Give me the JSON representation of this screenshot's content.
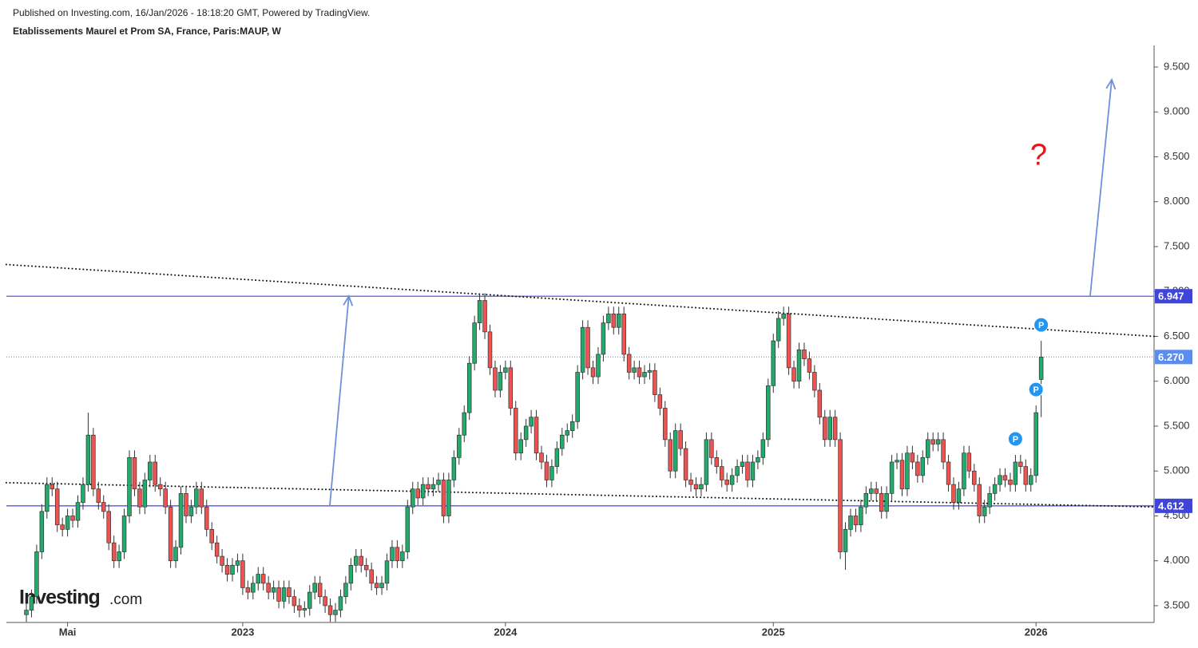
{
  "header": {
    "published": "Published on Investing.com, 16/Jan/2026 - 18:18:20 GMT, Powered by TradingView."
  },
  "logo": {
    "name": "Investing",
    "suffix": ".com"
  },
  "chart_data": {
    "type": "candlestick",
    "title": "Etablissements Maurel et Prom SA, France, Paris:MAUP, W",
    "up_color": "#22ab6b",
    "down_color": "#ef5350",
    "ylim": [
      3.313,
      9.74
    ],
    "yticks": [
      {
        "value": 3.5,
        "label": "3.500"
      },
      {
        "value": 4.0,
        "label": "4.000"
      },
      {
        "value": 4.5,
        "label": "4.500"
      },
      {
        "value": 5.0,
        "label": "5.000"
      },
      {
        "value": 5.5,
        "label": "5.500"
      },
      {
        "value": 6.0,
        "label": "6.000"
      },
      {
        "value": 6.5,
        "label": "6.500"
      },
      {
        "value": 7.0,
        "label": "7.000"
      },
      {
        "value": 7.5,
        "label": "7.500"
      },
      {
        "value": 8.0,
        "label": "8.000"
      },
      {
        "value": 8.5,
        "label": "8.500"
      },
      {
        "value": 9.0,
        "label": "9.000"
      },
      {
        "value": 9.5,
        "label": "9.500"
      }
    ],
    "categories": [
      null,
      null,
      null,
      null,
      null,
      null,
      null,
      null,
      "Mai",
      null,
      null,
      null,
      null,
      null,
      null,
      null,
      null,
      null,
      null,
      null,
      null,
      null,
      null,
      null,
      null,
      null,
      null,
      null,
      null,
      null,
      null,
      null,
      null,
      null,
      null,
      null,
      null,
      null,
      null,
      null,
      null,
      null,
      "2023",
      null,
      null,
      null,
      null,
      null,
      null,
      null,
      null,
      null,
      null,
      null,
      null,
      null,
      null,
      null,
      null,
      null,
      null,
      null,
      null,
      null,
      null,
      null,
      null,
      null,
      null,
      null,
      null,
      null,
      null,
      null,
      null,
      null,
      null,
      null,
      null,
      null,
      null,
      null,
      null,
      null,
      null,
      null,
      null,
      null,
      null,
      null,
      null,
      null,
      null,
      "2024",
      null,
      null,
      null,
      null,
      null,
      null,
      null,
      null,
      null,
      null,
      null,
      null,
      null,
      null,
      null,
      null,
      null,
      null,
      null,
      null,
      null,
      null,
      null,
      null,
      null,
      null,
      null,
      null,
      null,
      null,
      null,
      null,
      null,
      null,
      null,
      null,
      null,
      null,
      null,
      null,
      null,
      null,
      null,
      null,
      null,
      null,
      null,
      null,
      null,
      null,
      null,
      "2025",
      null,
      null,
      null,
      null,
      null,
      null,
      null,
      null,
      null,
      null,
      null,
      null,
      null,
      null,
      null,
      null,
      null,
      null,
      null,
      null,
      null,
      null,
      null,
      null,
      null,
      null,
      null,
      null,
      null,
      null,
      null,
      null,
      null,
      null,
      null,
      null,
      null,
      null,
      null,
      null,
      null,
      null,
      null,
      null,
      null,
      null,
      null,
      null,
      null,
      null,
      "2026",
      null
    ],
    "open": [
      3.4,
      3.45,
      3.6,
      4.1,
      4.55,
      4.85,
      4.8,
      4.4,
      4.35,
      4.5,
      4.45,
      4.65,
      4.85,
      5.4,
      4.8,
      4.65,
      4.55,
      4.2,
      4.0,
      4.1,
      4.5,
      5.15,
      4.8,
      4.6,
      4.9,
      5.1,
      4.85,
      4.8,
      4.6,
      4.0,
      4.15,
      4.75,
      4.5,
      4.6,
      4.8,
      4.6,
      4.35,
      4.2,
      4.05,
      3.95,
      3.85,
      3.95,
      4.0,
      3.7,
      3.65,
      3.75,
      3.85,
      3.75,
      3.65,
      3.7,
      3.55,
      3.7,
      3.6,
      3.5,
      3.45,
      3.47,
      3.65,
      3.75,
      3.6,
      3.5,
      3.4,
      3.45,
      3.6,
      3.75,
      3.95,
      4.05,
      3.95,
      3.9,
      3.75,
      3.7,
      3.75,
      4.0,
      4.15,
      4.0,
      4.1,
      4.6,
      4.8,
      4.7,
      4.85,
      4.8,
      4.85,
      4.9,
      4.5,
      4.9,
      5.15,
      5.4,
      5.65,
      6.2,
      6.65,
      6.9,
      6.55,
      6.15,
      5.9,
      6.1,
      6.15,
      5.7,
      5.2,
      5.35,
      5.5,
      5.6,
      5.2,
      5.1,
      4.9,
      5.05,
      5.25,
      5.4,
      5.45,
      5.55,
      6.1,
      6.6,
      6.15,
      6.05,
      6.3,
      6.65,
      6.75,
      6.6,
      6.75,
      6.3,
      6.1,
      6.15,
      6.05,
      6.1,
      6.12,
      5.85,
      5.7,
      5.35,
      5.0,
      5.45,
      5.25,
      4.9,
      4.85,
      4.8,
      4.85,
      5.35,
      5.15,
      5.05,
      4.9,
      4.85,
      4.95,
      5.05,
      5.1,
      4.9,
      5.1,
      5.15,
      5.35,
      5.95,
      6.45,
      6.7,
      6.75,
      6.15,
      6.0,
      6.35,
      6.25,
      6.1,
      5.9,
      5.6,
      5.35,
      5.6,
      5.35,
      4.1,
      4.35,
      4.5,
      4.4,
      4.6,
      4.75,
      4.8,
      4.75,
      4.55,
      4.75,
      5.1,
      5.12,
      4.8,
      5.2,
      5.1,
      4.95,
      5.15,
      5.35,
      5.3,
      5.35,
      5.1,
      4.85,
      4.65,
      4.8,
      5.2,
      5.0,
      4.85,
      4.5,
      4.6,
      4.75,
      4.85,
      4.95,
      4.9,
      4.85,
      5.1,
      5.05,
      4.85,
      4.95,
      6.02
    ],
    "high": [
      3.53,
      3.68,
      4.18,
      4.63,
      4.93,
      4.93,
      4.88,
      4.48,
      4.58,
      4.58,
      4.73,
      4.93,
      5.65,
      5.48,
      4.88,
      4.73,
      4.63,
      4.28,
      4.18,
      4.58,
      5.23,
      5.23,
      4.88,
      4.98,
      5.18,
      5.18,
      4.93,
      4.88,
      4.68,
      4.23,
      4.83,
      4.83,
      4.68,
      4.88,
      4.88,
      4.68,
      4.43,
      4.28,
      4.13,
      4.03,
      4.03,
      4.08,
      4.08,
      3.78,
      3.83,
      3.93,
      3.93,
      3.83,
      3.78,
      3.78,
      3.78,
      3.78,
      3.68,
      3.58,
      3.55,
      3.73,
      3.83,
      3.83,
      3.68,
      3.58,
      3.53,
      3.68,
      3.83,
      4.03,
      4.13,
      4.13,
      4.03,
      3.98,
      3.83,
      3.83,
      4.08,
      4.23,
      4.23,
      4.18,
      4.68,
      4.88,
      4.88,
      4.93,
      4.93,
      4.93,
      4.98,
      4.98,
      4.98,
      5.23,
      5.48,
      5.73,
      6.28,
      6.73,
      6.98,
      6.98,
      6.63,
      6.23,
      6.18,
      6.23,
      6.23,
      5.78,
      5.43,
      5.58,
      5.68,
      5.68,
      5.28,
      5.18,
      5.13,
      5.33,
      5.48,
      5.53,
      5.63,
      6.18,
      6.68,
      6.68,
      6.23,
      6.38,
      6.73,
      6.83,
      6.83,
      6.83,
      6.83,
      6.38,
      6.23,
      6.23,
      6.18,
      6.2,
      6.2,
      5.93,
      5.78,
      5.43,
      5.53,
      5.53,
      5.33,
      4.98,
      4.93,
      4.93,
      5.43,
      5.43,
      5.23,
      5.13,
      4.98,
      5.03,
      5.13,
      5.18,
      5.18,
      5.18,
      5.23,
      5.43,
      6.03,
      6.53,
      6.78,
      6.83,
      6.83,
      6.23,
      6.43,
      6.43,
      6.33,
      6.18,
      5.98,
      5.68,
      5.68,
      5.68,
      5.43,
      4.43,
      4.58,
      4.58,
      4.68,
      4.83,
      4.88,
      4.88,
      4.83,
      4.83,
      5.18,
      5.2,
      5.2,
      5.28,
      5.28,
      5.18,
      5.23,
      5.43,
      5.43,
      5.43,
      5.43,
      5.18,
      4.93,
      4.88,
      5.28,
      5.28,
      5.08,
      4.93,
      4.68,
      4.83,
      4.93,
      5.03,
      5.03,
      4.98,
      5.18,
      5.18,
      5.13,
      5.03,
      5.73,
      6.45
    ],
    "low": [
      3.32,
      3.37,
      3.52,
      4.02,
      4.47,
      4.72,
      4.32,
      4.27,
      4.27,
      4.37,
      4.37,
      4.57,
      4.77,
      4.72,
      4.57,
      4.47,
      4.12,
      3.92,
      3.92,
      4.02,
      4.42,
      4.72,
      4.52,
      4.52,
      4.82,
      4.77,
      4.72,
      4.52,
      3.92,
      3.92,
      4.07,
      4.42,
      4.42,
      4.52,
      4.52,
      4.27,
      4.12,
      3.97,
      3.87,
      3.77,
      3.77,
      3.87,
      3.62,
      3.57,
      3.57,
      3.67,
      3.67,
      3.57,
      3.57,
      3.47,
      3.47,
      3.52,
      3.42,
      3.37,
      3.37,
      3.39,
      3.57,
      3.52,
      3.42,
      3.32,
      3.32,
      3.37,
      3.52,
      3.67,
      3.87,
      3.87,
      3.82,
      3.67,
      3.62,
      3.62,
      3.67,
      3.92,
      3.92,
      3.92,
      4.02,
      4.52,
      4.62,
      4.62,
      4.72,
      4.72,
      4.77,
      4.42,
      4.42,
      4.82,
      5.07,
      5.32,
      5.57,
      6.12,
      6.57,
      6.47,
      6.07,
      5.82,
      5.82,
      6.02,
      5.62,
      5.12,
      5.12,
      5.27,
      5.42,
      5.12,
      5.02,
      4.82,
      4.82,
      4.97,
      5.17,
      5.32,
      5.37,
      5.47,
      6.02,
      6.07,
      5.97,
      5.97,
      6.22,
      6.57,
      6.52,
      6.52,
      6.22,
      6.02,
      6.02,
      5.97,
      5.97,
      6.02,
      5.77,
      5.62,
      5.27,
      4.92,
      4.92,
      5.17,
      4.82,
      4.77,
      4.72,
      4.72,
      4.77,
      5.07,
      4.97,
      4.82,
      4.77,
      4.77,
      4.87,
      4.97,
      4.82,
      4.82,
      5.02,
      5.07,
      5.27,
      5.87,
      6.37,
      6.62,
      6.07,
      5.92,
      5.92,
      6.17,
      6.02,
      5.82,
      5.52,
      5.27,
      5.27,
      5.27,
      4.02,
      3.9,
      4.27,
      4.32,
      4.32,
      4.52,
      4.67,
      4.67,
      4.47,
      4.47,
      4.67,
      5.02,
      4.72,
      4.72,
      5.02,
      4.87,
      4.87,
      5.07,
      5.22,
      5.22,
      5.02,
      4.77,
      4.57,
      4.57,
      4.72,
      4.92,
      4.77,
      4.42,
      4.42,
      4.52,
      4.67,
      4.77,
      4.82,
      4.77,
      4.77,
      4.97,
      4.77,
      4.77,
      4.87,
      5.6
    ],
    "close": [
      3.45,
      3.6,
      4.1,
      4.55,
      4.85,
      4.8,
      4.4,
      4.35,
      4.5,
      4.45,
      4.65,
      4.85,
      5.4,
      4.8,
      4.65,
      4.55,
      4.2,
      4.0,
      4.1,
      4.5,
      5.15,
      4.8,
      4.6,
      4.9,
      5.1,
      4.85,
      4.8,
      4.6,
      4.0,
      4.15,
      4.75,
      4.5,
      4.6,
      4.8,
      4.6,
      4.35,
      4.2,
      4.05,
      3.95,
      3.85,
      3.95,
      4.0,
      3.7,
      3.65,
      3.75,
      3.85,
      3.75,
      3.65,
      3.7,
      3.55,
      3.7,
      3.6,
      3.5,
      3.45,
      3.47,
      3.65,
      3.75,
      3.6,
      3.5,
      3.4,
      3.45,
      3.6,
      3.75,
      3.95,
      4.05,
      3.95,
      3.9,
      3.75,
      3.7,
      3.75,
      4.0,
      4.15,
      4.0,
      4.1,
      4.6,
      4.8,
      4.7,
      4.85,
      4.8,
      4.85,
      4.9,
      4.5,
      4.9,
      5.15,
      5.4,
      5.65,
      6.2,
      6.65,
      6.9,
      6.55,
      6.15,
      5.9,
      6.1,
      6.15,
      5.7,
      5.2,
      5.35,
      5.5,
      5.6,
      5.2,
      5.1,
      4.9,
      5.05,
      5.25,
      5.4,
      5.45,
      5.55,
      6.1,
      6.6,
      6.15,
      6.05,
      6.3,
      6.65,
      6.75,
      6.6,
      6.75,
      6.3,
      6.1,
      6.15,
      6.05,
      6.1,
      6.12,
      5.85,
      5.7,
      5.35,
      5.0,
      5.45,
      5.25,
      4.9,
      4.85,
      4.8,
      4.85,
      5.35,
      5.15,
      5.05,
      4.9,
      4.85,
      4.95,
      5.05,
      5.1,
      4.9,
      5.1,
      5.15,
      5.35,
      5.95,
      6.45,
      6.7,
      6.75,
      6.15,
      6.0,
      6.35,
      6.25,
      6.1,
      5.9,
      5.6,
      5.35,
      5.6,
      5.35,
      4.1,
      4.35,
      4.5,
      4.4,
      4.6,
      4.75,
      4.8,
      4.75,
      4.55,
      4.75,
      5.1,
      5.12,
      4.8,
      5.2,
      5.1,
      4.95,
      5.15,
      5.35,
      5.3,
      5.35,
      5.1,
      4.85,
      4.65,
      4.8,
      5.2,
      5.0,
      4.85,
      4.5,
      4.6,
      4.75,
      4.85,
      4.95,
      4.9,
      4.85,
      5.1,
      5.05,
      4.85,
      4.95,
      5.65,
      6.27
    ],
    "levels": [
      6.947,
      4.612
    ],
    "level_color": "#3f45d8",
    "last_price": {
      "value": 6.27,
      "label": "6.270"
    },
    "last_color": "#5b8def",
    "trendlines": [
      {
        "from": [
          -3.9,
          7.3
        ],
        "to": [
          218.9,
          6.5
        ]
      },
      {
        "from": [
          -3.9,
          4.87
        ],
        "to": [
          218.9,
          4.6
        ]
      }
    ],
    "arrows": [
      {
        "from": [
          58.9,
          4.612
        ],
        "to": [
          62.6,
          6.947
        ]
      },
      {
        "from": [
          206.5,
          6.947
        ],
        "to": [
          210.7,
          9.36
        ]
      }
    ],
    "arrow_color": "#6f8fd8",
    "markers": [
      {
        "index": 192,
        "label": "P"
      },
      {
        "index": 196,
        "label": "P"
      },
      {
        "index": 197,
        "label": "P"
      }
    ],
    "annotations": [
      {
        "text": "?",
        "at": [
          196.5,
          8.5
        ],
        "color": "#e8151b"
      }
    ]
  }
}
